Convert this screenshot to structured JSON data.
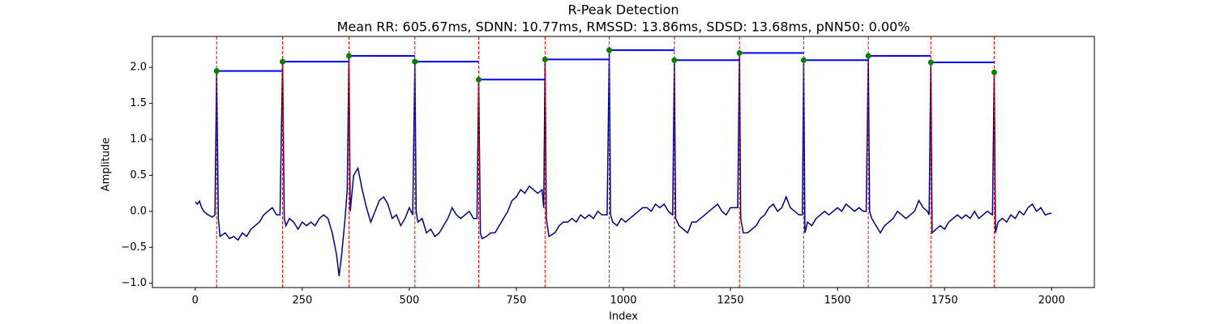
{
  "chart_data": {
    "type": "line",
    "title": "R-Peak Detection",
    "subtitle": "Mean RR: 605.67ms, SDNN: 10.77ms, RMSSD: 13.86ms, SDSD: 13.68ms, pNN50: 0.00%",
    "xlabel": "Index",
    "ylabel": "Amplitude",
    "xlim": [
      -100,
      2100
    ],
    "ylim": [
      -1.06,
      2.43
    ],
    "xticks": [
      0,
      250,
      500,
      750,
      1000,
      1250,
      1500,
      1750,
      2000
    ],
    "yticks": [
      {
        "value": -1.0,
        "label": "−1.0"
      },
      {
        "value": -0.5,
        "label": "−0.5"
      },
      {
        "value": 0.0,
        "label": "0.0"
      },
      {
        "value": 0.5,
        "label": "0.5"
      },
      {
        "value": 1.0,
        "label": "1.0"
      },
      {
        "value": 1.5,
        "label": "1.5"
      },
      {
        "value": 2.0,
        "label": "2.0"
      }
    ],
    "peak_line_color": "#ff0000",
    "rr_line_color": "#0000ff",
    "series": [
      {
        "type": "line",
        "color": "#00008b",
        "x": [
          0,
          5,
          10,
          15,
          20,
          30,
          40,
          46,
          50,
          54,
          58,
          70,
          80,
          90,
          100,
          110,
          120,
          130,
          140,
          150,
          160,
          170,
          180,
          190,
          198,
          204,
          208,
          212,
          220,
          230,
          240,
          250,
          260,
          270,
          280,
          290,
          300,
          310,
          320,
          330,
          336,
          342,
          350,
          355,
          359,
          362,
          370,
          380,
          390,
          400,
          410,
          420,
          430,
          440,
          450,
          460,
          470,
          480,
          490,
          500,
          508,
          513,
          516,
          520,
          530,
          540,
          550,
          560,
          570,
          580,
          590,
          600,
          610,
          620,
          630,
          640,
          650,
          658,
          662,
          666,
          670,
          680,
          690,
          700,
          710,
          720,
          730,
          740,
          750,
          760,
          770,
          780,
          790,
          800,
          810,
          814,
          817,
          820,
          826,
          840,
          850,
          860,
          870,
          880,
          890,
          900,
          910,
          920,
          930,
          940,
          950,
          962,
          967,
          970,
          975,
          985,
          995,
          1005,
          1015,
          1025,
          1035,
          1045,
          1055,
          1065,
          1075,
          1085,
          1095,
          1105,
          1115,
          1119,
          1122,
          1130,
          1140,
          1150,
          1160,
          1170,
          1180,
          1190,
          1200,
          1210,
          1220,
          1230,
          1240,
          1250,
          1260,
          1267,
          1271,
          1274,
          1280,
          1290,
          1300,
          1310,
          1320,
          1330,
          1340,
          1350,
          1360,
          1370,
          1380,
          1390,
          1400,
          1410,
          1418,
          1421,
          1424,
          1430,
          1440,
          1450,
          1460,
          1470,
          1480,
          1490,
          1500,
          1510,
          1520,
          1530,
          1540,
          1550,
          1560,
          1567,
          1572,
          1575,
          1580,
          1590,
          1600,
          1610,
          1620,
          1630,
          1640,
          1650,
          1660,
          1670,
          1680,
          1690,
          1700,
          1710,
          1714,
          1718,
          1721,
          1730,
          1740,
          1750,
          1760,
          1770,
          1780,
          1790,
          1800,
          1810,
          1820,
          1830,
          1840,
          1850,
          1862,
          1866,
          1869,
          1875,
          1885,
          1895,
          1905,
          1915,
          1925,
          1935,
          1945,
          1955,
          1965,
          1975,
          1985,
          1995,
          2000
        ],
        "values": [
          0.13,
          0.1,
          0.14,
          0.05,
          0.0,
          -0.05,
          -0.08,
          -0.05,
          1.95,
          -0.1,
          -0.35,
          -0.3,
          -0.38,
          -0.35,
          -0.4,
          -0.3,
          -0.35,
          -0.25,
          -0.2,
          -0.15,
          -0.05,
          0.0,
          0.05,
          -0.05,
          -0.05,
          2.08,
          -0.1,
          -0.2,
          -0.1,
          -0.15,
          -0.25,
          -0.15,
          -0.2,
          -0.15,
          -0.2,
          -0.1,
          -0.05,
          -0.1,
          -0.3,
          -0.6,
          -0.9,
          -0.6,
          -0.1,
          0.3,
          2.16,
          0.0,
          0.5,
          0.6,
          0.3,
          0.05,
          -0.15,
          0.0,
          0.15,
          0.2,
          0.1,
          -0.1,
          -0.05,
          -0.2,
          -0.1,
          0.05,
          -0.05,
          2.08,
          0.0,
          -0.15,
          -0.1,
          -0.3,
          -0.25,
          -0.35,
          -0.3,
          -0.2,
          -0.1,
          0.05,
          -0.05,
          -0.1,
          -0.05,
          0.0,
          -0.1,
          -0.1,
          1.83,
          -0.3,
          -0.38,
          -0.35,
          -0.3,
          -0.3,
          -0.2,
          -0.1,
          0.0,
          0.15,
          0.2,
          0.3,
          0.25,
          0.35,
          0.3,
          0.25,
          0.3,
          0.05,
          2.11,
          -0.1,
          -0.35,
          -0.3,
          -0.2,
          -0.15,
          -0.15,
          -0.1,
          -0.15,
          -0.05,
          -0.1,
          -0.05,
          -0.1,
          0.0,
          -0.05,
          -0.05,
          2.24,
          -0.05,
          -0.15,
          -0.2,
          -0.1,
          -0.15,
          -0.1,
          -0.05,
          0.0,
          0.05,
          0.05,
          0.0,
          0.1,
          0.05,
          0.1,
          0.0,
          -0.05,
          2.1,
          -0.1,
          -0.2,
          -0.25,
          -0.3,
          -0.15,
          -0.15,
          -0.1,
          -0.05,
          0.0,
          0.05,
          0.1,
          0.0,
          -0.05,
          0.05,
          0.05,
          0.05,
          2.2,
          -0.1,
          -0.3,
          -0.3,
          -0.25,
          -0.2,
          -0.1,
          -0.05,
          0.05,
          0.1,
          0.0,
          0.05,
          0.2,
          0.05,
          0.0,
          -0.05,
          -0.05,
          2.1,
          -0.3,
          -0.15,
          -0.2,
          -0.1,
          -0.05,
          0.0,
          -0.05,
          0.0,
          0.05,
          0.0,
          0.1,
          0.05,
          0.0,
          0.05,
          0.0,
          0.0,
          2.16,
          0.0,
          -0.1,
          -0.2,
          -0.3,
          -0.2,
          -0.15,
          -0.1,
          0.0,
          -0.05,
          -0.1,
          -0.05,
          0.0,
          0.15,
          0.05,
          0.0,
          -0.05,
          2.07,
          -0.3,
          -0.25,
          -0.2,
          -0.25,
          -0.15,
          -0.1,
          -0.05,
          -0.1,
          -0.05,
          -0.1,
          0.0,
          -0.1,
          -0.05,
          0.0,
          -0.05,
          1.93,
          -0.3,
          -0.15,
          -0.1,
          -0.15,
          -0.05,
          -0.1,
          0.0,
          -0.05,
          0.05,
          0.1,
          0.0,
          0.05,
          -0.05,
          -0.03,
          -0.03
        ]
      },
      {
        "type": "scatter",
        "color": "#008000",
        "x": [
          50,
          204,
          359,
          513,
          662,
          817,
          967,
          1119,
          1271,
          1421,
          1572,
          1718,
          1866
        ],
        "values": [
          1.95,
          2.08,
          2.16,
          2.08,
          1.83,
          2.11,
          2.24,
          2.1,
          2.2,
          2.1,
          2.16,
          2.07,
          1.93
        ]
      }
    ]
  }
}
